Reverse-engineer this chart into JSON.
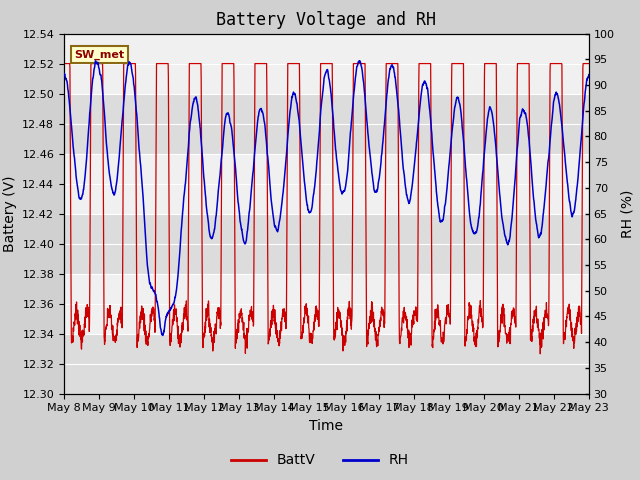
{
  "title": "Battery Voltage and RH",
  "xlabel": "Time",
  "ylabel_left": "Battery (V)",
  "ylabel_right": "RH (%)",
  "ylim_left": [
    12.3,
    12.54
  ],
  "ylim_right": [
    30,
    100
  ],
  "yticks_left": [
    12.3,
    12.32,
    12.34,
    12.36,
    12.38,
    12.4,
    12.42,
    12.44,
    12.46,
    12.48,
    12.5,
    12.52,
    12.54
  ],
  "yticks_right": [
    30,
    35,
    40,
    45,
    50,
    55,
    60,
    65,
    70,
    75,
    80,
    85,
    90,
    95,
    100
  ],
  "x_tick_labels": [
    "May 8",
    "May 9",
    "May 10",
    "May 11",
    "May 12",
    "May 13",
    "May 14",
    "May 15",
    "May 16",
    "May 17",
    "May 18",
    "May 19",
    "May 20",
    "May 21",
    "May 22",
    "May 23"
  ],
  "annotation_label": "SW_met",
  "annotation_bg": "#ffffcc",
  "annotation_border": "#8B6914",
  "legend_labels": [
    "BattV",
    "RH"
  ],
  "legend_colors": [
    "#cc0000",
    "#0000cc"
  ],
  "batt_color": "#cc0000",
  "rh_color": "#0000cc",
  "fig_bg": "#d0d0d0",
  "plot_bg": "#f0f0f0",
  "band_low_bg": "#dcdcdc",
  "grid_color": "#ffffff",
  "title_fontsize": 12,
  "axis_label_fontsize": 10,
  "tick_fontsize": 8,
  "legend_fontsize": 10
}
